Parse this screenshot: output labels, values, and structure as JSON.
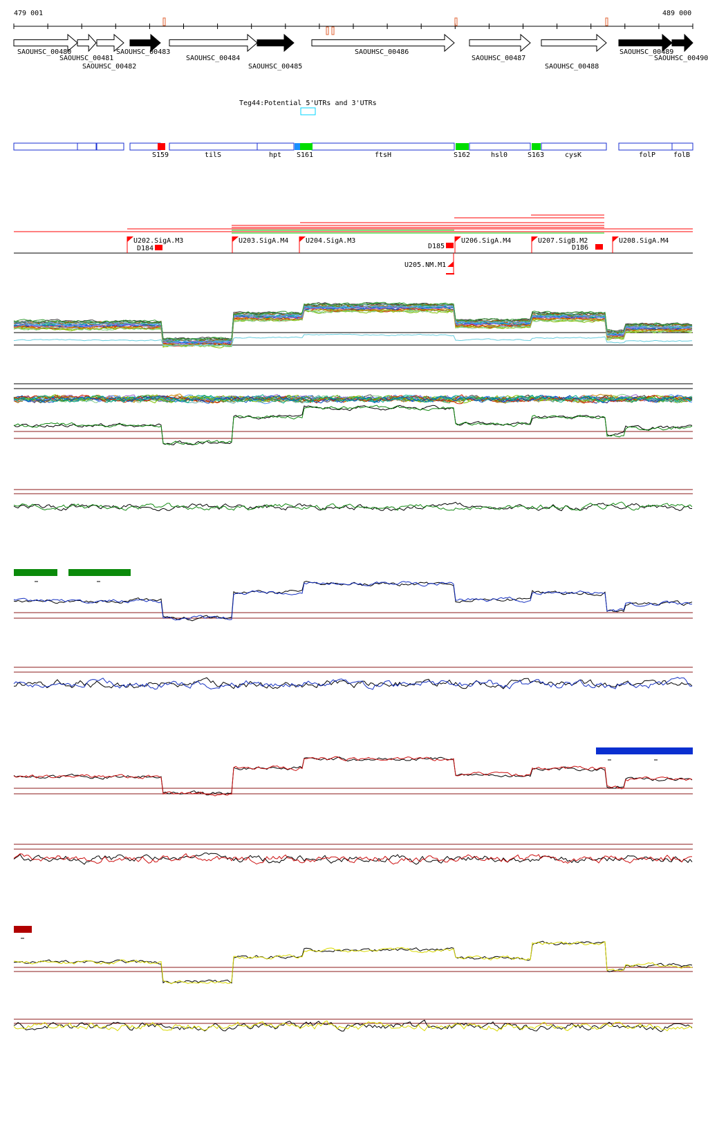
{
  "ruler": {
    "start_label": "479 001",
    "end_label": "489 000"
  },
  "colors": {
    "ruler": "#000000",
    "marker": "#e06030",
    "gene_fill_dark": "#000000",
    "feature_blue": "#1a2fd1",
    "srna_red": "#ff0000",
    "srna_green": "#00dd00",
    "utr_cyan": "#00d5ff",
    "promoter_red": "#ff0000",
    "line_red": "#ff0000",
    "line_green": "#00cc00",
    "baseline": "#8b1a1a",
    "bar_green": "#0a8a0a",
    "bar_blue": "#0a2fd0",
    "bar_darkred": "#b00000",
    "trace_green": "#118811",
    "trace_blue": "#1530c0",
    "trace_red": "#cc1010",
    "trace_yellow": "#d8d800",
    "trace_black": "#000000"
  },
  "genes": [
    {
      "label": "SAOUHSC_00480",
      "strand": "+",
      "filled": false
    },
    {
      "label": "SAOUHSC_00481",
      "strand": "+",
      "filled": false
    },
    {
      "label": "SAOUHSC_00482",
      "strand": "+",
      "filled": false
    },
    {
      "label": "SAOUHSC_00483",
      "strand": "+",
      "filled": true
    },
    {
      "label": "SAOUHSC_00484",
      "strand": "+",
      "filled": false
    },
    {
      "label": "SAOUHSC_00485",
      "strand": "+",
      "filled": true
    },
    {
      "label": "SAOUHSC_00486",
      "strand": "+",
      "filled": false
    },
    {
      "label": "SAOUHSC_00487",
      "strand": "+",
      "filled": false
    },
    {
      "label": "SAOUHSC_00488",
      "strand": "+",
      "filled": false
    },
    {
      "label": "SAOUHSC_00489",
      "strand": "+",
      "filled": true
    },
    {
      "label": "SAOUHSC_00490",
      "strand": "+",
      "filled": true
    }
  ],
  "utr_track": {
    "label": "Teg44:Potential 5'UTRs and 3'UTRs"
  },
  "features": {
    "labels": [
      "S159",
      "tilS",
      "hpt",
      "S161",
      "ftsH",
      "S162",
      "hsl0",
      "S163",
      "cysK",
      "folP",
      "folB"
    ]
  },
  "promoters": {
    "labels": [
      "U202.SigA.M3",
      "U203.SigA.M4",
      "U204.SigA.M3",
      "U206.SigA.M4",
      "U207.SigB.M2",
      "U208.SigA.M4",
      "U205.NM.M1"
    ],
    "terminators": [
      "D184",
      "D185",
      "D186"
    ]
  }
}
